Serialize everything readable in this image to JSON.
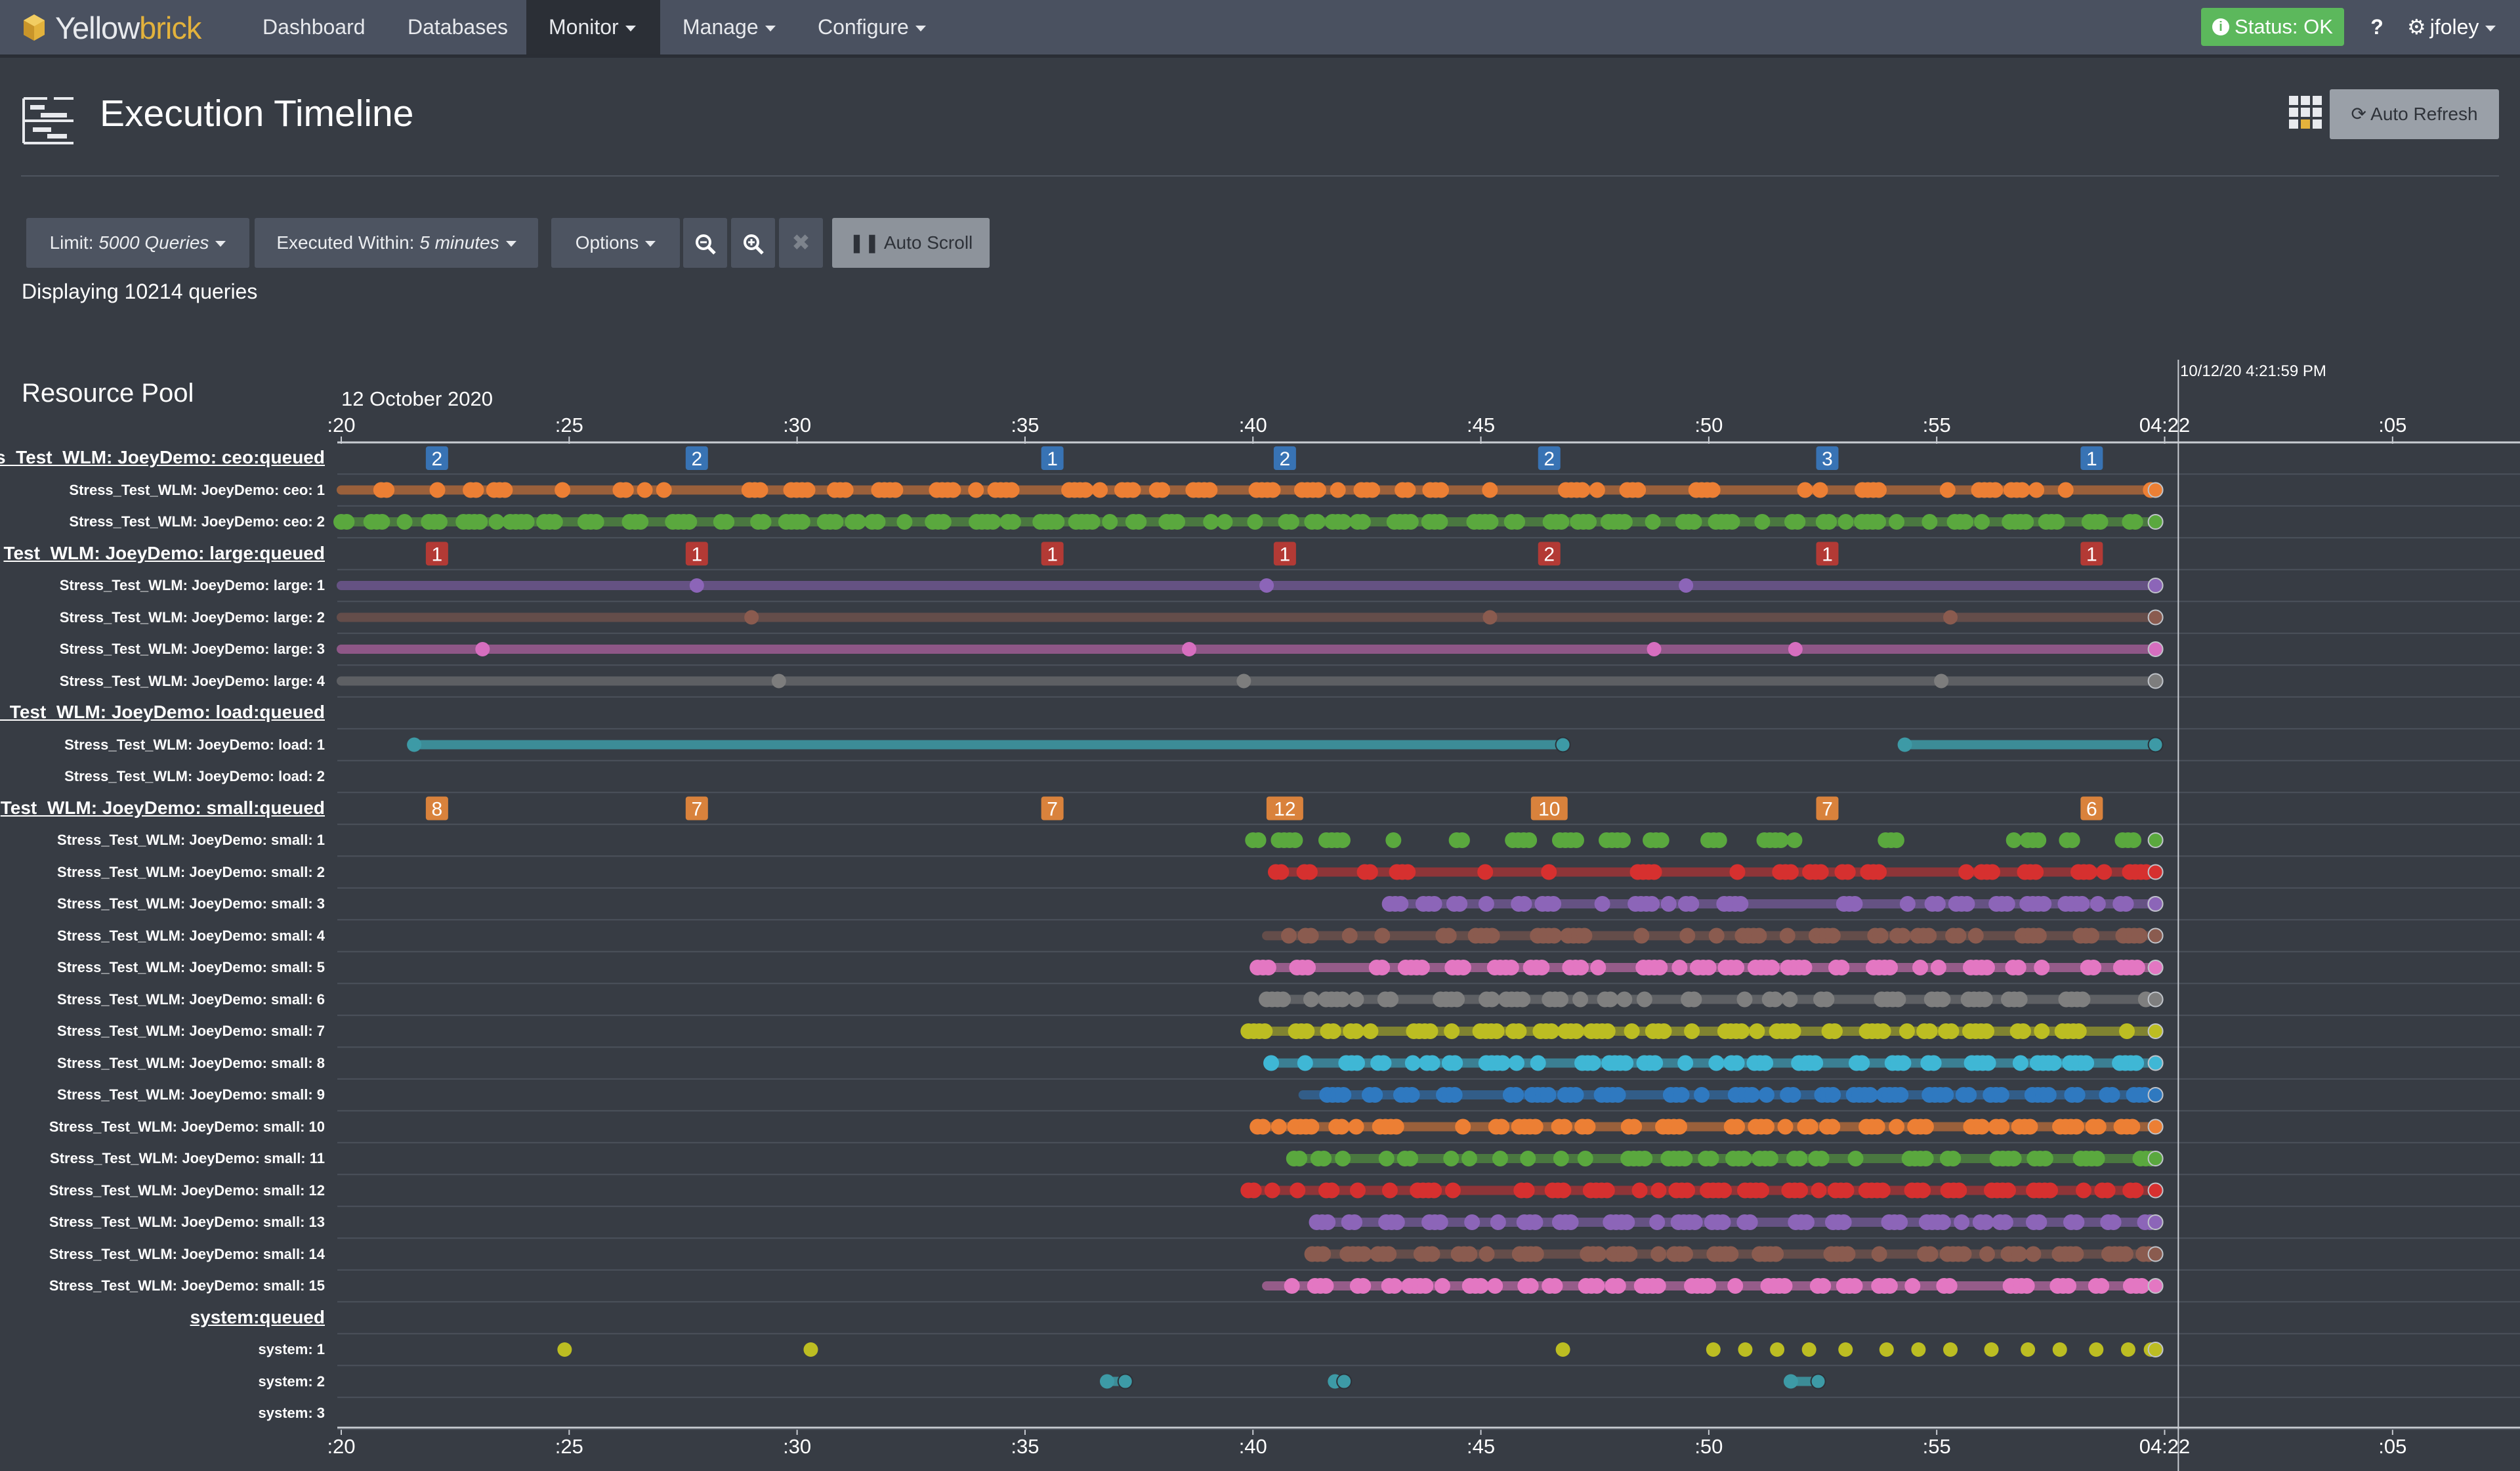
{
  "nav": {
    "brand_part1": "Yellow",
    "brand_part2": "brick",
    "items": [
      {
        "label": "Dashboard",
        "caret": false,
        "active": false
      },
      {
        "label": "Databases",
        "caret": false,
        "active": false
      },
      {
        "label": "Monitor",
        "caret": true,
        "active": true
      },
      {
        "label": "Manage",
        "caret": true,
        "active": false
      },
      {
        "label": "Configure",
        "caret": true,
        "active": false
      }
    ],
    "status": "Status: OK",
    "help": "?",
    "user": "jfoley"
  },
  "header": {
    "title": "Execution Timeline",
    "auto_refresh": "Auto Refresh"
  },
  "toolbar": {
    "limit_label": "Limit: ",
    "limit_value": "5000 Queries",
    "within_label": "Executed Within: ",
    "within_value": "5 minutes",
    "options": "Options",
    "auto_scroll": "Auto Scroll",
    "displaying": "Displaying 10214 queries"
  },
  "timeline": {
    "section_title": "Resource Pool",
    "date": "12 October 2020",
    "now_marker": "10/12/20 4:21:59 PM",
    "ticks": [
      ":20",
      ":25",
      ":30",
      ":35",
      ":40",
      ":45",
      ":50",
      ":55",
      "04:22",
      ":05"
    ],
    "tick_minutes": [
      20,
      25,
      30,
      35,
      40,
      45,
      50,
      55,
      60,
      65
    ],
    "now_minute": 60.3,
    "end_minute": 59.8,
    "rows": [
      {
        "label": "s_Test_WLM: JoeyDemo: ceo:queued",
        "type": "queued",
        "badge_color": "#3873b4",
        "badges": [
          {
            "t": 22.1,
            "v": "2"
          },
          {
            "t": 27.8,
            "v": "2"
          },
          {
            "t": 35.6,
            "v": "1"
          },
          {
            "t": 40.7,
            "v": "2"
          },
          {
            "t": 46.5,
            "v": "2"
          },
          {
            "t": 52.6,
            "v": "3"
          },
          {
            "t": 58.4,
            "v": "1"
          }
        ]
      },
      {
        "label": "Stress_Test_WLM: JoeyDemo: ceo: 1",
        "color": "#ec7f34",
        "start": 20.0,
        "seed": 11,
        "density": 0.55
      },
      {
        "label": "Stress_Test_WLM: JoeyDemo: ceo: 2",
        "color": "#5aa83e",
        "start": 20.0,
        "seed": 12,
        "density": 0.95
      },
      {
        "label": "Test_WLM: JoeyDemo: large:queued",
        "type": "queued",
        "badge_color": "#b33a35",
        "badges": [
          {
            "t": 22.1,
            "v": "1"
          },
          {
            "t": 27.8,
            "v": "1"
          },
          {
            "t": 35.6,
            "v": "1"
          },
          {
            "t": 40.7,
            "v": "1"
          },
          {
            "t": 46.5,
            "v": "2"
          },
          {
            "t": 52.6,
            "v": "1"
          },
          {
            "t": 58.4,
            "v": "1"
          }
        ]
      },
      {
        "label": "Stress_Test_WLM: JoeyDemo: large: 1",
        "color": "#8c65b8",
        "start": 20.0,
        "points": [
          27.8,
          40.3,
          49.5
        ],
        "sparse": true
      },
      {
        "label": "Stress_Test_WLM: JoeyDemo: large: 2",
        "color": "#8a5b4f",
        "start": 20.0,
        "points": [
          29.0,
          45.2,
          55.3
        ],
        "sparse": true
      },
      {
        "label": "Stress_Test_WLM: JoeyDemo: large: 3",
        "color": "#d66ebf",
        "start": 20.0,
        "points": [
          23.1,
          38.6,
          48.8,
          51.9
        ],
        "sparse": true
      },
      {
        "label": "Stress_Test_WLM: JoeyDemo: large: 4",
        "color": "#7d7d7d",
        "start": 20.0,
        "points": [
          29.6,
          39.8,
          55.1
        ],
        "sparse": true
      },
      {
        "label": "_Test_WLM: JoeyDemo: load:queued",
        "type": "queued",
        "badges": []
      },
      {
        "label": "Stress_Test_WLM: JoeyDemo: load: 1",
        "color": "#3d9aa6",
        "segments": [
          [
            21.6,
            46.8
          ],
          [
            54.3,
            59.8
          ]
        ],
        "sparse": true
      },
      {
        "label": "Stress_Test_WLM: JoeyDemo: load: 2",
        "empty": true
      },
      {
        "label": "Test_WLM: JoeyDemo: small:queued",
        "type": "queued",
        "badge_color": "#d9823c",
        "badges": [
          {
            "t": 22.1,
            "v": "8"
          },
          {
            "t": 27.8,
            "v": "7"
          },
          {
            "t": 35.6,
            "v": "7"
          },
          {
            "t": 40.7,
            "v": "12"
          },
          {
            "t": 46.5,
            "v": "10"
          },
          {
            "t": 52.6,
            "v": "7"
          },
          {
            "t": 58.4,
            "v": "6"
          }
        ]
      },
      {
        "label": "Stress_Test_WLM: JoeyDemo: small: 1",
        "color": "#5aa83e",
        "start": 40.0,
        "seed": 21,
        "density": 0.45,
        "no_bar": true
      },
      {
        "label": "Stress_Test_WLM: JoeyDemo: small: 2",
        "color": "#d6302f",
        "start": 40.5,
        "seed": 22,
        "density": 0.6
      },
      {
        "label": "Stress_Test_WLM: JoeyDemo: small: 3",
        "color": "#8c65b8",
        "start": 43.0,
        "seed": 23,
        "density": 0.8
      },
      {
        "label": "Stress_Test_WLM: JoeyDemo: small: 4",
        "color": "#8a5b4f",
        "start": 40.3,
        "seed": 24,
        "density": 0.7
      },
      {
        "label": "Stress_Test_WLM: JoeyDemo: small: 5",
        "color": "#e377c2",
        "start": 40.1,
        "seed": 25,
        "density": 0.8
      },
      {
        "label": "Stress_Test_WLM: JoeyDemo: small: 6",
        "color": "#7f7f7f",
        "start": 40.3,
        "seed": 26,
        "density": 0.75
      },
      {
        "label": "Stress_Test_WLM: JoeyDemo: small: 7",
        "color": "#bcbd22",
        "start": 39.9,
        "seed": 27,
        "density": 0.8
      },
      {
        "label": "Stress_Test_WLM: JoeyDemo: small: 8",
        "color": "#3fb7d5",
        "start": 40.4,
        "seed": 28,
        "density": 0.85
      },
      {
        "label": "Stress_Test_WLM: JoeyDemo: small: 9",
        "color": "#2f79c0",
        "start": 41.1,
        "seed": 29,
        "density": 0.85
      },
      {
        "label": "Stress_Test_WLM: JoeyDemo: small: 10",
        "color": "#ec7f34",
        "start": 40.1,
        "seed": 30,
        "density": 0.8
      },
      {
        "label": "Stress_Test_WLM: JoeyDemo: small: 11",
        "color": "#5aa83e",
        "start": 40.9,
        "seed": 31,
        "density": 0.75
      },
      {
        "label": "Stress_Test_WLM: JoeyDemo: small: 12",
        "color": "#d6302f",
        "start": 39.9,
        "seed": 32,
        "density": 0.8
      },
      {
        "label": "Stress_Test_WLM: JoeyDemo: small: 13",
        "color": "#8c65b8",
        "start": 41.4,
        "seed": 33,
        "density": 0.8
      },
      {
        "label": "Stress_Test_WLM: JoeyDemo: small: 14",
        "color": "#8a5b4f",
        "start": 41.3,
        "seed": 34,
        "density": 0.7
      },
      {
        "label": "Stress_Test_WLM: JoeyDemo: small: 15",
        "color": "#e377c2",
        "start": 40.3,
        "seed": 35,
        "density": 0.8
      },
      {
        "label": "system:queued",
        "type": "queued",
        "badges": []
      },
      {
        "label": "system: 1",
        "color": "#bcbd22",
        "points": [
          24.9,
          30.3,
          46.8,
          50.1,
          50.8,
          51.5,
          52.2,
          53.0,
          53.9,
          54.6,
          55.3,
          56.2,
          57.0,
          57.7,
          58.5,
          59.2,
          59.7
        ],
        "sparse": true,
        "no_bar": true
      },
      {
        "label": "system: 2",
        "color": "#3d9aa6",
        "segments": [
          [
            36.8,
            37.2
          ],
          [
            41.8,
            42.0
          ],
          [
            51.8,
            52.4
          ]
        ],
        "sparse": true,
        "no_bar": true
      },
      {
        "label": "system: 3",
        "empty": true
      }
    ]
  }
}
